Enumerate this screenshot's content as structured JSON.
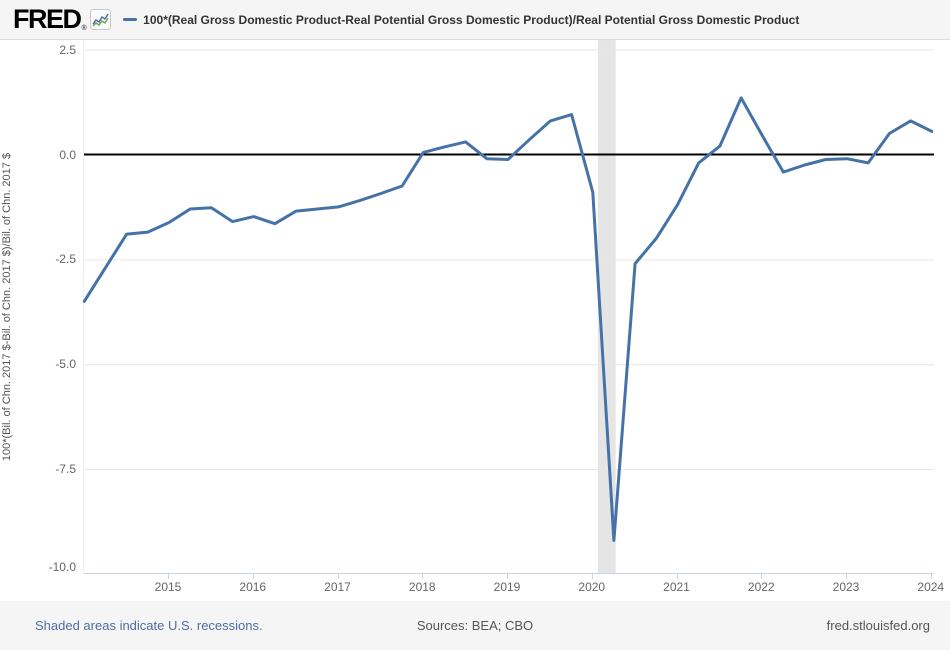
{
  "header": {
    "logo": "FRED",
    "registered_mark": "®",
    "series_title": "100*(Real Gross Domestic Product-Real Potential Gross Domestic Product)/Real Potential Gross Domestic Product"
  },
  "footer": {
    "recession_note": "Shaded areas indicate U.S. recessions.",
    "sources": "Sources: BEA; CBO",
    "url": "fred.stlouisfed.org"
  },
  "colors": {
    "line": "#4572a7",
    "recession_band": "#e5e5e5",
    "gridline": "#e6e6e6",
    "zero_line": "#000000",
    "axis_line": "#c8d4e3",
    "tick_label": "#666666",
    "link": "#4a6fa5",
    "header_bg": "#f5f5f5"
  },
  "chart_data": {
    "type": "line",
    "title": "100*(Real Gross Domestic Product-Real Potential Gross Domestic Product)/Real Potential Gross Domestic Product",
    "xlabel": "",
    "ylabel": "100*(Bil. of Chn. 2017 $-Bil. of Chn. 2017 $)/Bil. of Chn. 2017 $",
    "legend_position": "top",
    "grid": true,
    "x_start": 2014.0,
    "x_step": 0.25,
    "x_unit": "quarterly",
    "values": [
      -3.5,
      -2.7,
      -1.9,
      -1.85,
      -1.62,
      -1.3,
      -1.27,
      -1.6,
      -1.48,
      -1.65,
      -1.35,
      -1.3,
      -1.25,
      -1.1,
      -0.93,
      -0.75,
      0.05,
      0.18,
      0.3,
      -0.1,
      -0.12,
      0.35,
      0.8,
      0.95,
      -0.9,
      -9.2,
      -2.6,
      -2.0,
      -1.2,
      -0.2,
      0.2,
      1.35,
      0.45,
      -0.42,
      -0.25,
      -0.12,
      -0.1,
      -0.2,
      0.5,
      0.8,
      0.55
    ],
    "ylim": [
      -10.0,
      2.5
    ],
    "xlim": [
      2014.0,
      2024.03
    ],
    "yticks": [
      2.5,
      0.0,
      -2.5,
      -5.0,
      -7.5,
      -10.0
    ],
    "ytick_labels": [
      "2.5",
      "0.0",
      "-2.5",
      "-5.0",
      "-7.5",
      "-10.0"
    ],
    "xticks": [
      2015,
      2016,
      2017,
      2018,
      2019,
      2020,
      2021,
      2022,
      2023,
      2024
    ],
    "zero_line": true,
    "recession_bands": [
      {
        "start": 2020.06,
        "end": 2020.27
      }
    ]
  }
}
